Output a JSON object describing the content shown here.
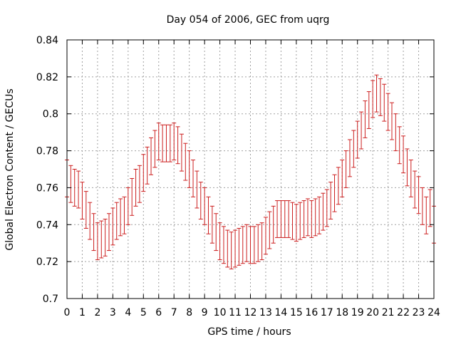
{
  "chart_data": {
    "type": "scatter",
    "title": "Day 054 of 2006, GEC from uqrg",
    "xlabel": "GPS time / hours",
    "ylabel": "Global Electron Content / GECUs",
    "xlim": [
      0,
      24
    ],
    "ylim": [
      0.7,
      0.84
    ],
    "grid": true,
    "x_ticks": [
      "0",
      "1",
      "2",
      "3",
      "4",
      "5",
      "6",
      "7",
      "8",
      "9",
      "10",
      "11",
      "12",
      "13",
      "14",
      "15",
      "16",
      "17",
      "18",
      "19",
      "20",
      "21",
      "22",
      "23",
      "24"
    ],
    "y_ticks": [
      "0.7",
      "0.72",
      "0.74",
      "0.76",
      "0.78",
      "0.8",
      "0.82",
      "0.84"
    ],
    "error_bar": 0.01,
    "series": [
      {
        "color": "#cc1f1f",
        "points": [
          {
            "x": 0.0,
            "y": 0.765
          },
          {
            "x": 0.25,
            "y": 0.762
          },
          {
            "x": 0.5,
            "y": 0.76
          },
          {
            "x": 0.75,
            "y": 0.759
          },
          {
            "x": 1.0,
            "y": 0.753
          },
          {
            "x": 1.25,
            "y": 0.748
          },
          {
            "x": 1.5,
            "y": 0.742
          },
          {
            "x": 1.75,
            "y": 0.736
          },
          {
            "x": 2.0,
            "y": 0.731
          },
          {
            "x": 2.25,
            "y": 0.732
          },
          {
            "x": 2.5,
            "y": 0.733
          },
          {
            "x": 2.75,
            "y": 0.736
          },
          {
            "x": 3.0,
            "y": 0.739
          },
          {
            "x": 3.25,
            "y": 0.742
          },
          {
            "x": 3.5,
            "y": 0.744
          },
          {
            "x": 3.75,
            "y": 0.745
          },
          {
            "x": 4.0,
            "y": 0.75
          },
          {
            "x": 4.25,
            "y": 0.755
          },
          {
            "x": 4.5,
            "y": 0.76
          },
          {
            "x": 4.75,
            "y": 0.762
          },
          {
            "x": 5.0,
            "y": 0.768
          },
          {
            "x": 5.25,
            "y": 0.772
          },
          {
            "x": 5.5,
            "y": 0.777
          },
          {
            "x": 5.75,
            "y": 0.781
          },
          {
            "x": 6.0,
            "y": 0.785
          },
          {
            "x": 6.25,
            "y": 0.784
          },
          {
            "x": 6.5,
            "y": 0.784
          },
          {
            "x": 6.75,
            "y": 0.784
          },
          {
            "x": 7.0,
            "y": 0.785
          },
          {
            "x": 7.25,
            "y": 0.783
          },
          {
            "x": 7.5,
            "y": 0.779
          },
          {
            "x": 7.75,
            "y": 0.774
          },
          {
            "x": 8.0,
            "y": 0.77
          },
          {
            "x": 8.25,
            "y": 0.765
          },
          {
            "x": 8.5,
            "y": 0.759
          },
          {
            "x": 8.75,
            "y": 0.753
          },
          {
            "x": 9.0,
            "y": 0.75
          },
          {
            "x": 9.25,
            "y": 0.745
          },
          {
            "x": 9.5,
            "y": 0.74
          },
          {
            "x": 9.75,
            "y": 0.736
          },
          {
            "x": 10.0,
            "y": 0.731
          },
          {
            "x": 10.25,
            "y": 0.729
          },
          {
            "x": 10.5,
            "y": 0.727
          },
          {
            "x": 10.75,
            "y": 0.726
          },
          {
            "x": 11.0,
            "y": 0.727
          },
          {
            "x": 11.25,
            "y": 0.728
          },
          {
            "x": 11.5,
            "y": 0.729
          },
          {
            "x": 11.75,
            "y": 0.73
          },
          {
            "x": 12.0,
            "y": 0.729
          },
          {
            "x": 12.25,
            "y": 0.729
          },
          {
            "x": 12.5,
            "y": 0.73
          },
          {
            "x": 12.75,
            "y": 0.731
          },
          {
            "x": 13.0,
            "y": 0.734
          },
          {
            "x": 13.25,
            "y": 0.737
          },
          {
            "x": 13.5,
            "y": 0.74
          },
          {
            "x": 13.75,
            "y": 0.743
          },
          {
            "x": 14.0,
            "y": 0.743
          },
          {
            "x": 14.25,
            "y": 0.743
          },
          {
            "x": 14.5,
            "y": 0.743
          },
          {
            "x": 14.75,
            "y": 0.742
          },
          {
            "x": 15.0,
            "y": 0.741
          },
          {
            "x": 15.25,
            "y": 0.742
          },
          {
            "x": 15.5,
            "y": 0.743
          },
          {
            "x": 15.75,
            "y": 0.744
          },
          {
            "x": 16.0,
            "y": 0.743
          },
          {
            "x": 16.25,
            "y": 0.744
          },
          {
            "x": 16.5,
            "y": 0.745
          },
          {
            "x": 16.75,
            "y": 0.747
          },
          {
            "x": 17.0,
            "y": 0.749
          },
          {
            "x": 17.25,
            "y": 0.753
          },
          {
            "x": 17.5,
            "y": 0.757
          },
          {
            "x": 17.75,
            "y": 0.761
          },
          {
            "x": 18.0,
            "y": 0.765
          },
          {
            "x": 18.25,
            "y": 0.77
          },
          {
            "x": 18.5,
            "y": 0.776
          },
          {
            "x": 18.75,
            "y": 0.781
          },
          {
            "x": 19.0,
            "y": 0.786
          },
          {
            "x": 19.25,
            "y": 0.791
          },
          {
            "x": 19.5,
            "y": 0.797
          },
          {
            "x": 19.75,
            "y": 0.802
          },
          {
            "x": 20.0,
            "y": 0.808
          },
          {
            "x": 20.25,
            "y": 0.811
          },
          {
            "x": 20.5,
            "y": 0.809
          },
          {
            "x": 20.75,
            "y": 0.806
          },
          {
            "x": 21.0,
            "y": 0.801
          },
          {
            "x": 21.25,
            "y": 0.796
          },
          {
            "x": 21.5,
            "y": 0.79
          },
          {
            "x": 21.75,
            "y": 0.783
          },
          {
            "x": 22.0,
            "y": 0.778
          },
          {
            "x": 22.25,
            "y": 0.771
          },
          {
            "x": 22.5,
            "y": 0.765
          },
          {
            "x": 22.75,
            "y": 0.759
          },
          {
            "x": 23.0,
            "y": 0.756
          },
          {
            "x": 23.25,
            "y": 0.75
          },
          {
            "x": 23.5,
            "y": 0.745
          },
          {
            "x": 23.75,
            "y": 0.749
          },
          {
            "x": 24.0,
            "y": 0.74
          }
        ]
      }
    ]
  }
}
